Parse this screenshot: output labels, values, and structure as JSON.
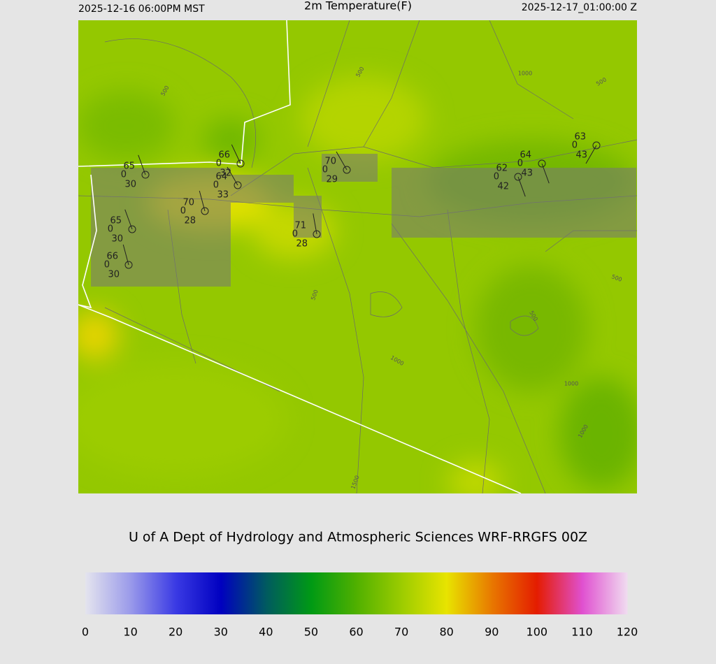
{
  "header": {
    "left": "2025-12-16 06:00PM MST",
    "title": "2m Temperature(F)",
    "right": "2025-12-17_01:00:00 Z"
  },
  "stations": [
    {
      "temp": "65",
      "precip": "0",
      "dew": "30"
    },
    {
      "temp": "66",
      "precip": "0",
      "dew": "32"
    },
    {
      "temp": "64",
      "precip": "0",
      "dew": "33"
    },
    {
      "temp": "70",
      "precip": "0",
      "dew": "28"
    },
    {
      "temp": "65",
      "precip": "0",
      "dew": "30"
    },
    {
      "temp": "66",
      "precip": "0",
      "dew": "30"
    },
    {
      "temp": "71",
      "precip": "0",
      "dew": "28"
    },
    {
      "temp": "70",
      "precip": "0",
      "dew": "29"
    },
    {
      "temp": "62",
      "precip": "0",
      "dew": "42"
    },
    {
      "temp": "64",
      "precip": "0",
      "dew": "43"
    },
    {
      "temp": "63",
      "precip": "0",
      "dew": "43"
    }
  ],
  "contour_labels": [
    "500",
    "500",
    "1000",
    "500",
    "500",
    "500",
    "1000",
    "1000",
    "1000",
    "1500",
    "500"
  ],
  "credit": "U of A Dept of Hydrology and Atmospheric Sciences WRF-RRGFS 00Z",
  "colorbar": {
    "ticks": [
      0,
      10,
      20,
      30,
      40,
      50,
      60,
      70,
      80,
      90,
      100,
      110,
      120
    ],
    "colors": [
      "#e4e4ee",
      "#9a9aea",
      "#3a3ae4",
      "#0000c0",
      "#005a60",
      "#009a14",
      "#50b000",
      "#9ccc00",
      "#e8e400",
      "#e87800",
      "#e41c00",
      "#e050d0",
      "#f0dcf0"
    ]
  }
}
